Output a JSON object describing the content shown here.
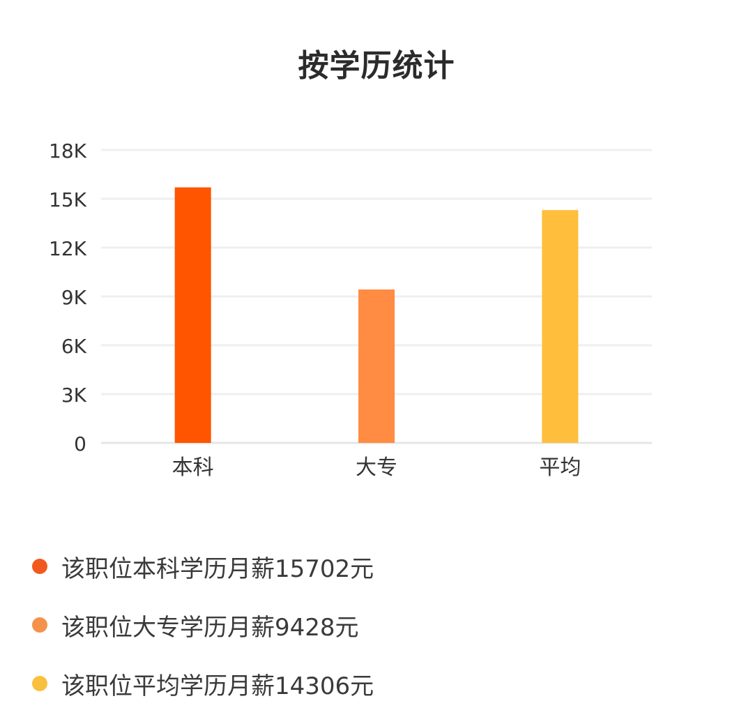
{
  "title": "按学历统计",
  "chart_data": {
    "type": "bar",
    "title": "按学历统计",
    "categories": [
      "本科",
      "大专",
      "平均"
    ],
    "values": [
      15702,
      9428,
      14306
    ],
    "colors": [
      "#ff5500",
      "#ff8c42",
      "#ffbe3b"
    ],
    "ylim": [
      0,
      18000
    ],
    "yticks": [
      0,
      3000,
      6000,
      9000,
      12000,
      15000,
      18000
    ],
    "ytick_labels": [
      "0",
      "3K",
      "6K",
      "9K",
      "12K",
      "15K",
      "18K"
    ],
    "grid": true,
    "xlabel": "",
    "ylabel": ""
  },
  "legend": {
    "items": [
      {
        "text": "该职位本科学历月薪15702元",
        "color": "#f05a1e"
      },
      {
        "text": "该职位大专学历月薪9428元",
        "color": "#f5924a"
      },
      {
        "text": "该职位平均学历月薪14306元",
        "color": "#f8c03e"
      }
    ]
  }
}
